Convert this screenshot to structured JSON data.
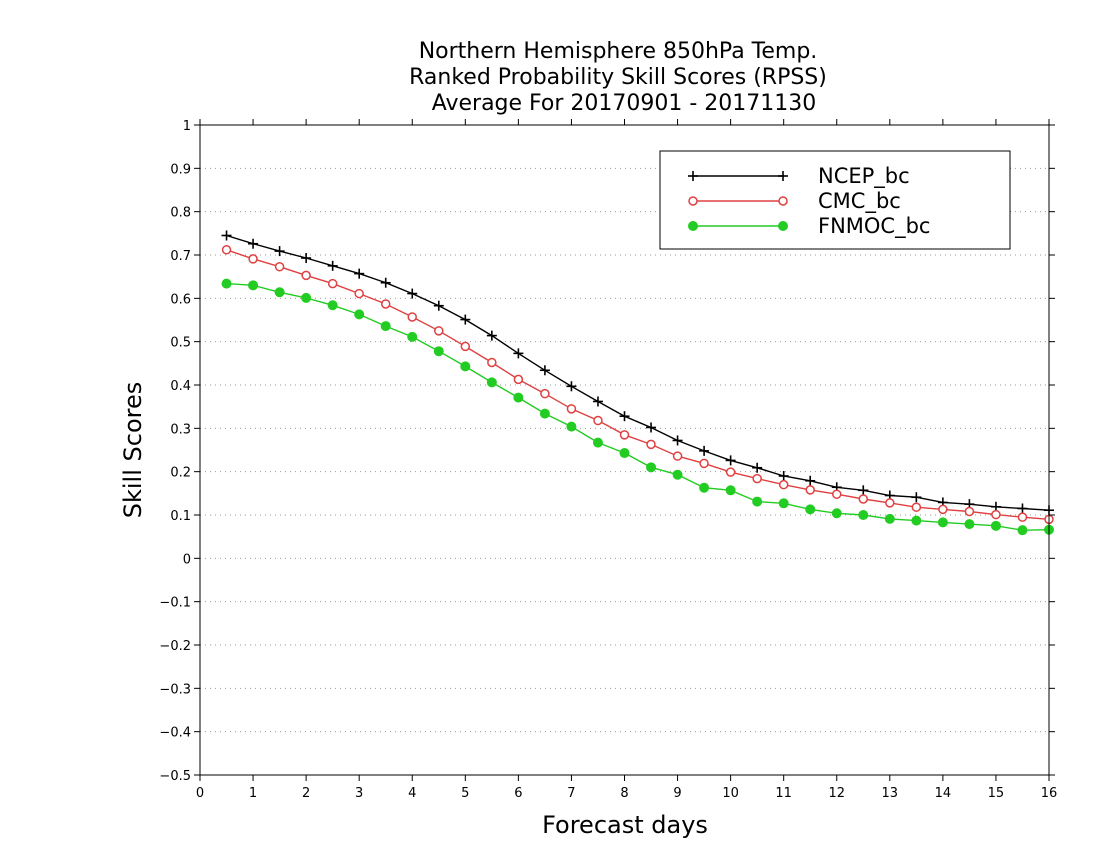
{
  "chart_data": {
    "type": "line",
    "title": [
      "Northern Hemisphere 850hPa Temp.",
      "Ranked Probability Skill Scores (RPSS)",
      "Average For 20170901 - 20171130"
    ],
    "xlabel": "Forecast days",
    "ylabel": "Skill Scores",
    "xlim": [
      0,
      16
    ],
    "ylim": [
      -0.5,
      1
    ],
    "xticks": [
      0,
      1,
      2,
      3,
      4,
      5,
      6,
      7,
      8,
      9,
      10,
      11,
      12,
      13,
      14,
      15,
      16
    ],
    "yticks": [
      -0.5,
      -0.4,
      -0.3,
      -0.2,
      -0.1,
      0,
      0.1,
      0.2,
      0.3,
      0.4,
      0.5,
      0.6,
      0.7,
      0.8,
      0.9,
      1
    ],
    "ytick_labels": [
      "−0.5",
      "−0.4",
      "−0.3",
      "−0.2",
      "−0.1",
      "0",
      "0.1",
      "0.2",
      "0.3",
      "0.4",
      "0.5",
      "0.6",
      "0.7",
      "0.8",
      "0.9",
      "1"
    ],
    "grid": "horizontal-dotted",
    "legend_position": "top-right",
    "x": [
      0.5,
      1,
      1.5,
      2,
      2.5,
      3,
      3.5,
      4,
      4.5,
      5,
      5.5,
      6,
      6.5,
      7,
      7.5,
      8,
      8.5,
      9,
      9.5,
      10,
      10.5,
      11,
      11.5,
      12,
      12.5,
      13,
      13.5,
      14,
      14.5,
      15,
      15.5,
      16
    ],
    "series": [
      {
        "name": "NCEP_bc",
        "color": "#000000",
        "marker": "plus",
        "values": [
          0.745,
          0.726,
          0.709,
          0.693,
          0.675,
          0.657,
          0.636,
          0.611,
          0.583,
          0.551,
          0.514,
          0.473,
          0.434,
          0.397,
          0.362,
          0.328,
          0.302,
          0.272,
          0.248,
          0.226,
          0.209,
          0.19,
          0.179,
          0.164,
          0.157,
          0.145,
          0.141,
          0.129,
          0.125,
          0.119,
          0.115,
          0.111
        ]
      },
      {
        "name": "CMC_bc",
        "color": "#e04040",
        "marker": "open-circle",
        "values": [
          0.712,
          0.691,
          0.673,
          0.653,
          0.634,
          0.611,
          0.587,
          0.557,
          0.525,
          0.489,
          0.452,
          0.413,
          0.38,
          0.345,
          0.318,
          0.285,
          0.263,
          0.236,
          0.219,
          0.199,
          0.184,
          0.17,
          0.158,
          0.148,
          0.137,
          0.128,
          0.118,
          0.113,
          0.108,
          0.101,
          0.095,
          0.09
        ]
      },
      {
        "name": "FNMOC_bc",
        "color": "#22cc22",
        "marker": "filled-circle",
        "values": [
          0.634,
          0.63,
          0.614,
          0.601,
          0.584,
          0.563,
          0.536,
          0.511,
          0.478,
          0.443,
          0.406,
          0.371,
          0.334,
          0.304,
          0.267,
          0.243,
          0.21,
          0.193,
          0.163,
          0.157,
          0.131,
          0.127,
          0.113,
          0.104,
          0.1,
          0.091,
          0.087,
          0.083,
          0.079,
          0.075,
          0.065,
          0.066
        ]
      }
    ]
  }
}
